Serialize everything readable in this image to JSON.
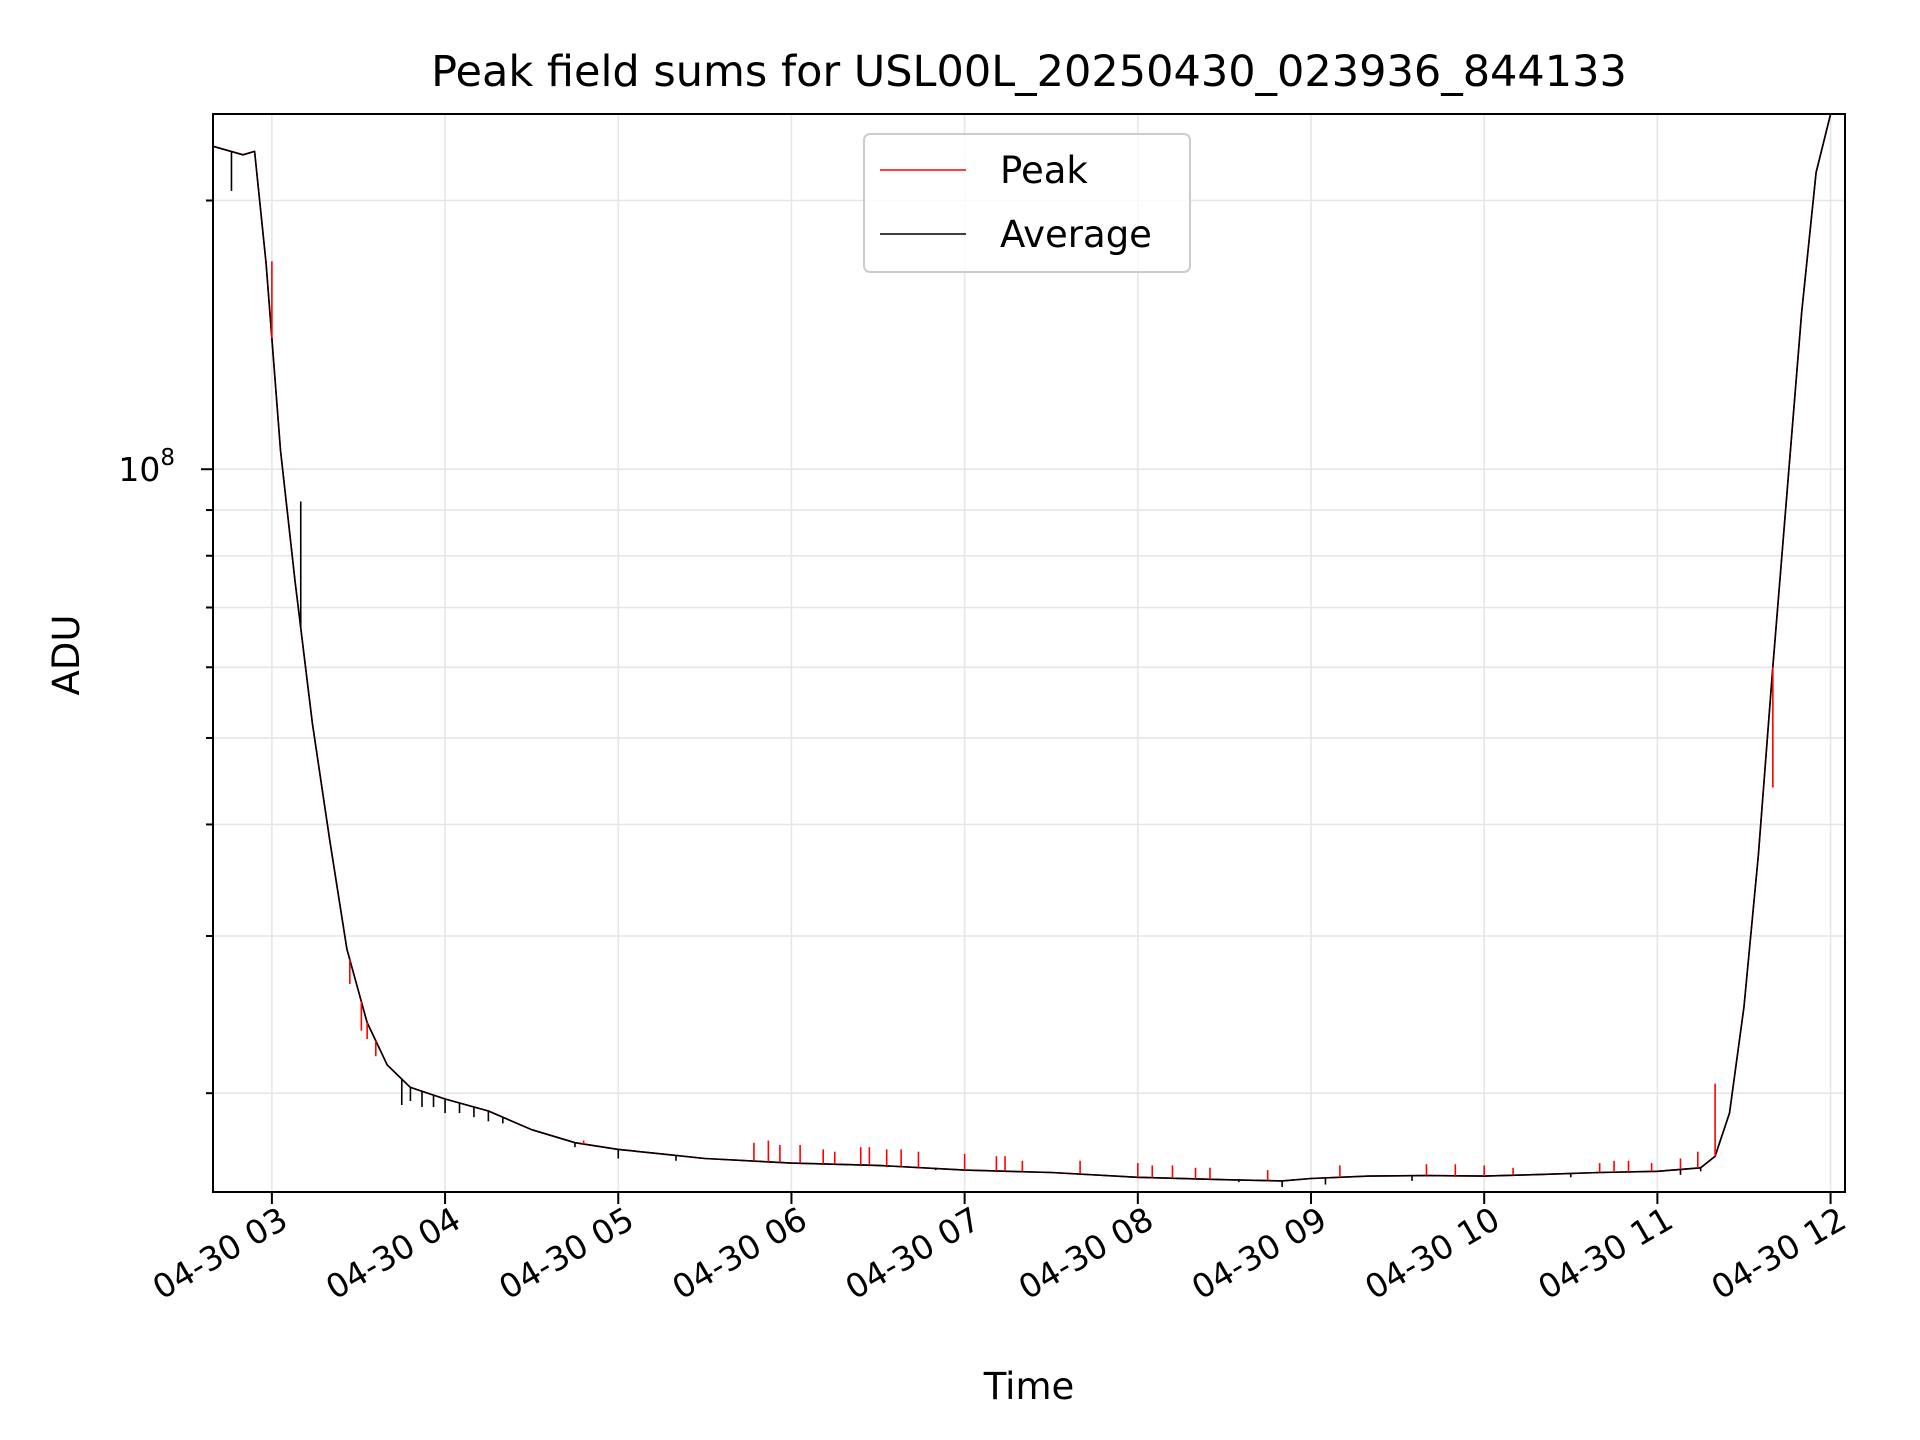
{
  "chart_data": {
    "type": "line",
    "title": "Peak field sums for USL00L_20250430_023936_844133",
    "xlabel": "Time",
    "ylabel": "ADU",
    "y_scale": "log",
    "grid": true,
    "legend_placement": "upper center",
    "xlim": [
      "2025-04-30 02:39:36",
      "2025-04-30 12:05:00"
    ],
    "ylim": [
      15500000,
      250000000
    ],
    "x_ticks": [
      {
        "t": "2025-04-30 03:00",
        "label": "04-30 03"
      },
      {
        "t": "2025-04-30 04:00",
        "label": "04-30 04"
      },
      {
        "t": "2025-04-30 05:00",
        "label": "04-30 05"
      },
      {
        "t": "2025-04-30 06:00",
        "label": "04-30 06"
      },
      {
        "t": "2025-04-30 07:00",
        "label": "04-30 07"
      },
      {
        "t": "2025-04-30 08:00",
        "label": "04-30 08"
      },
      {
        "t": "2025-04-30 09:00",
        "label": "04-30 09"
      },
      {
        "t": "2025-04-30 10:00",
        "label": "04-30 10"
      },
      {
        "t": "2025-04-30 11:00",
        "label": "04-30 11"
      },
      {
        "t": "2025-04-30 12:00",
        "label": "04-30 12"
      }
    ],
    "y_major_ticks": [
      {
        "value": 100000000,
        "label_base": "10",
        "label_exp": "8"
      }
    ],
    "y_minor_ticks": [
      20000000,
      30000000,
      40000000,
      50000000,
      60000000,
      70000000,
      80000000,
      90000000,
      200000000
    ],
    "series": [
      {
        "name": "Peak",
        "color": "#ff0000",
        "points": [
          [
            "2025-04-30 02:39:36",
            230000000
          ],
          [
            "2025-04-30 02:50:00",
            225000000
          ],
          [
            "2025-04-30 02:54:00",
            227000000
          ],
          [
            "2025-04-30 02:58:00",
            170000000
          ],
          [
            "2025-04-30 03:03:00",
            105000000
          ],
          [
            "2025-04-30 03:08:00",
            75000000
          ],
          [
            "2025-04-30 03:14:00",
            52000000
          ],
          [
            "2025-04-30 03:20:00",
            38500000
          ],
          [
            "2025-04-30 03:26:00",
            29000000
          ],
          [
            "2025-04-30 03:33:00",
            24000000
          ],
          [
            "2025-04-30 03:40:00",
            21500000
          ],
          [
            "2025-04-30 03:48:00",
            20300000
          ],
          [
            "2025-04-30 04:00:00",
            19700000
          ],
          [
            "2025-04-30 04:15:00",
            19100000
          ],
          [
            "2025-04-30 04:30:00",
            18200000
          ],
          [
            "2025-04-30 04:45:00",
            17600000
          ],
          [
            "2025-04-30 05:00:00",
            17300000
          ],
          [
            "2025-04-30 05:15:00",
            17100000
          ],
          [
            "2025-04-30 05:30:00",
            16900000
          ],
          [
            "2025-04-30 06:00:00",
            16700000
          ],
          [
            "2025-04-30 06:30:00",
            16600000
          ],
          [
            "2025-04-30 07:00:00",
            16400000
          ],
          [
            "2025-04-30 07:30:00",
            16300000
          ],
          [
            "2025-04-30 08:00:00",
            16100000
          ],
          [
            "2025-04-30 08:30:00",
            16000000
          ],
          [
            "2025-04-30 08:50:00",
            15950000
          ],
          [
            "2025-04-30 09:00:00",
            16050000
          ],
          [
            "2025-04-30 09:20:00",
            16150000
          ],
          [
            "2025-04-30 09:40:00",
            16170000
          ],
          [
            "2025-04-30 10:00:00",
            16150000
          ],
          [
            "2025-04-30 10:20:00",
            16220000
          ],
          [
            "2025-04-30 10:40:00",
            16300000
          ],
          [
            "2025-04-30 11:00:00",
            16350000
          ],
          [
            "2025-04-30 11:15:00",
            16500000
          ],
          [
            "2025-04-30 11:20:00",
            17000000
          ],
          [
            "2025-04-30 11:25:00",
            19000000
          ],
          [
            "2025-04-30 11:30:00",
            25000000
          ],
          [
            "2025-04-30 11:35:00",
            37000000
          ],
          [
            "2025-04-30 11:40:00",
            60000000
          ],
          [
            "2025-04-30 11:45:00",
            95000000
          ],
          [
            "2025-04-30 11:50:00",
            150000000
          ],
          [
            "2025-04-30 11:55:00",
            215000000
          ],
          [
            "2025-04-30 12:00:00",
            250000000
          ]
        ],
        "spikes": [
          [
            "2025-04-30 03:27:00",
            26500000
          ],
          [
            "2025-04-30 03:31:00",
            23500000
          ],
          [
            "2025-04-30 03:33:00",
            23000000
          ],
          [
            "2025-04-30 03:36:00",
            22000000
          ],
          [
            "2025-04-30 04:48:00",
            17700000
          ],
          [
            "2025-04-30 05:47:00",
            17600000
          ],
          [
            "2025-04-30 05:52:00",
            17700000
          ],
          [
            "2025-04-30 05:56:00",
            17500000
          ],
          [
            "2025-04-30 06:03:00",
            17500000
          ],
          [
            "2025-04-30 06:11:00",
            17300000
          ],
          [
            "2025-04-30 06:15:00",
            17200000
          ],
          [
            "2025-04-30 06:24:00",
            17400000
          ],
          [
            "2025-04-30 06:27:00",
            17400000
          ],
          [
            "2025-04-30 06:33:00",
            17300000
          ],
          [
            "2025-04-30 06:38:00",
            17300000
          ],
          [
            "2025-04-30 06:44:00",
            17200000
          ],
          [
            "2025-04-30 07:00:00",
            17100000
          ],
          [
            "2025-04-30 07:11:00",
            17000000
          ],
          [
            "2025-04-30 07:14:00",
            17000000
          ],
          [
            "2025-04-30 07:20:00",
            16800000
          ],
          [
            "2025-04-30 07:40:00",
            16800000
          ],
          [
            "2025-04-30 08:00:00",
            16700000
          ],
          [
            "2025-04-30 08:05:00",
            16600000
          ],
          [
            "2025-04-30 08:12:00",
            16600000
          ],
          [
            "2025-04-30 08:20:00",
            16500000
          ],
          [
            "2025-04-30 08:25:00",
            16500000
          ],
          [
            "2025-04-30 08:45:00",
            16400000
          ],
          [
            "2025-04-30 09:10:00",
            16600000
          ],
          [
            "2025-04-30 09:40:00",
            16650000
          ],
          [
            "2025-04-30 09:50:00",
            16650000
          ],
          [
            "2025-04-30 10:00:00",
            16600000
          ],
          [
            "2025-04-30 10:10:00",
            16500000
          ],
          [
            "2025-04-30 10:40:00",
            16700000
          ],
          [
            "2025-04-30 10:45:00",
            16800000
          ],
          [
            "2025-04-30 10:50:00",
            16800000
          ],
          [
            "2025-04-30 10:58:00",
            16700000
          ],
          [
            "2025-04-30 11:08:00",
            16900000
          ],
          [
            "2025-04-30 11:14:00",
            17200000
          ],
          [
            "2025-04-30 11:20:00",
            20500000
          ],
          [
            "2025-04-30 11:40:00",
            44000000
          ],
          [
            "2025-04-30 03:00:00",
            171000000
          ]
        ]
      },
      {
        "name": "Average",
        "color": "#000000",
        "points": [
          [
            "2025-04-30 02:39:36",
            230000000
          ],
          [
            "2025-04-30 02:50:00",
            225000000
          ],
          [
            "2025-04-30 02:54:00",
            227000000
          ],
          [
            "2025-04-30 02:58:00",
            170000000
          ],
          [
            "2025-04-30 03:03:00",
            105000000
          ],
          [
            "2025-04-30 03:08:00",
            75000000
          ],
          [
            "2025-04-30 03:14:00",
            52000000
          ],
          [
            "2025-04-30 03:20:00",
            38500000
          ],
          [
            "2025-04-30 03:26:00",
            29000000
          ],
          [
            "2025-04-30 03:33:00",
            24000000
          ],
          [
            "2025-04-30 03:40:00",
            21500000
          ],
          [
            "2025-04-30 03:48:00",
            20300000
          ],
          [
            "2025-04-30 04:00:00",
            19700000
          ],
          [
            "2025-04-30 04:15:00",
            19100000
          ],
          [
            "2025-04-30 04:30:00",
            18200000
          ],
          [
            "2025-04-30 04:45:00",
            17600000
          ],
          [
            "2025-04-30 05:00:00",
            17300000
          ],
          [
            "2025-04-30 05:15:00",
            17100000
          ],
          [
            "2025-04-30 05:30:00",
            16900000
          ],
          [
            "2025-04-30 06:00:00",
            16700000
          ],
          [
            "2025-04-30 06:30:00",
            16600000
          ],
          [
            "2025-04-30 07:00:00",
            16400000
          ],
          [
            "2025-04-30 07:30:00",
            16300000
          ],
          [
            "2025-04-30 08:00:00",
            16100000
          ],
          [
            "2025-04-30 08:30:00",
            16000000
          ],
          [
            "2025-04-30 08:50:00",
            15950000
          ],
          [
            "2025-04-30 09:00:00",
            16050000
          ],
          [
            "2025-04-30 09:20:00",
            16150000
          ],
          [
            "2025-04-30 09:40:00",
            16170000
          ],
          [
            "2025-04-30 10:00:00",
            16150000
          ],
          [
            "2025-04-30 10:20:00",
            16220000
          ],
          [
            "2025-04-30 10:40:00",
            16300000
          ],
          [
            "2025-04-30 11:00:00",
            16350000
          ],
          [
            "2025-04-30 11:15:00",
            16500000
          ],
          [
            "2025-04-30 11:20:00",
            17000000
          ],
          [
            "2025-04-30 11:25:00",
            19000000
          ],
          [
            "2025-04-30 11:30:00",
            25000000
          ],
          [
            "2025-04-30 11:35:00",
            37000000
          ],
          [
            "2025-04-30 11:40:00",
            60000000
          ],
          [
            "2025-04-30 11:45:00",
            95000000
          ],
          [
            "2025-04-30 11:50:00",
            150000000
          ],
          [
            "2025-04-30 11:55:00",
            215000000
          ],
          [
            "2025-04-30 12:00:00",
            250000000
          ]
        ],
        "dips": [
          [
            "2025-04-30 02:46:00",
            205000000
          ],
          [
            "2025-04-30 03:10:00",
            92000000
          ],
          [
            "2025-04-30 03:45:00",
            19400000
          ],
          [
            "2025-04-30 03:48:00",
            19600000
          ],
          [
            "2025-04-30 03:52:00",
            19300000
          ],
          [
            "2025-04-30 03:56:00",
            19300000
          ],
          [
            "2025-04-30 04:00:00",
            19000000
          ],
          [
            "2025-04-30 04:05:00",
            19000000
          ],
          [
            "2025-04-30 04:10:00",
            18800000
          ],
          [
            "2025-04-30 04:15:00",
            18600000
          ],
          [
            "2025-04-30 04:20:00",
            18500000
          ],
          [
            "2025-04-30 04:45:00",
            17400000
          ],
          [
            "2025-04-30 05:00:00",
            16900000
          ],
          [
            "2025-04-30 05:20:00",
            16800000
          ],
          [
            "2025-04-30 06:50:00",
            16400000
          ],
          [
            "2025-04-30 07:40:00",
            16200000
          ],
          [
            "2025-04-30 08:35:00",
            15900000
          ],
          [
            "2025-04-30 08:50:00",
            15700000
          ],
          [
            "2025-04-30 09:05:00",
            15800000
          ],
          [
            "2025-04-30 09:35:00",
            15950000
          ],
          [
            "2025-04-30 10:30:00",
            16100000
          ],
          [
            "2025-04-30 11:08:00",
            16200000
          ],
          [
            "2025-04-30 11:15:00",
            16350000
          ]
        ]
      }
    ]
  }
}
